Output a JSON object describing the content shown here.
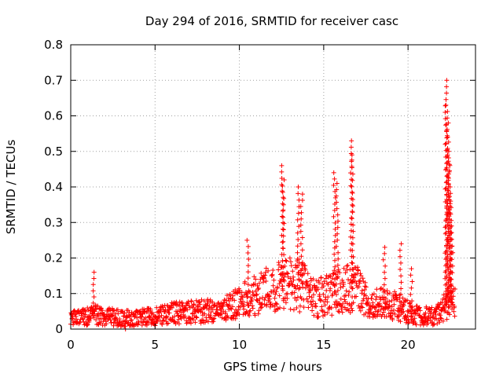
{
  "chart_data": {
    "type": "scatter",
    "title": "Day 294 of 2016, SRMTID for receiver casc",
    "xlabel": "GPS time / hours",
    "ylabel": "SRMTID / TECUs",
    "xlim": [
      0,
      24
    ],
    "ylim": [
      0,
      0.8
    ],
    "x_ticks": [
      0,
      5,
      10,
      15,
      20
    ],
    "y_ticks": [
      0,
      0.1,
      0.2,
      0.3,
      0.4,
      0.5,
      0.6,
      0.7,
      0.8
    ],
    "x_tick_labels": [
      "0",
      "5",
      "10",
      "15",
      "20"
    ],
    "y_tick_labels": [
      "0",
      "0.1",
      "0.2",
      "0.3",
      "0.4",
      "0.5",
      "0.6",
      "0.7",
      "0.8"
    ],
    "grid": true,
    "marker": "plus",
    "series": [
      {
        "name": "SRMTID",
        "color": "#ff0000",
        "baseline": [
          [
            0.0,
            0.035
          ],
          [
            1.0,
            0.035
          ],
          [
            1.5,
            0.04
          ],
          [
            3.0,
            0.03
          ],
          [
            5.0,
            0.035
          ],
          [
            6.0,
            0.045
          ],
          [
            8.0,
            0.05
          ],
          [
            9.5,
            0.06
          ],
          [
            10.5,
            0.09
          ],
          [
            11.5,
            0.11
          ],
          [
            12.5,
            0.12
          ],
          [
            13.2,
            0.13
          ],
          [
            14.0,
            0.11
          ],
          [
            14.5,
            0.085
          ],
          [
            15.5,
            0.1
          ],
          [
            16.2,
            0.12
          ],
          [
            17.0,
            0.11
          ],
          [
            18.0,
            0.075
          ],
          [
            19.0,
            0.07
          ],
          [
            19.8,
            0.055
          ],
          [
            20.3,
            0.04
          ],
          [
            21.5,
            0.035
          ],
          [
            22.0,
            0.05
          ],
          [
            22.5,
            0.09
          ],
          [
            22.8,
            0.07
          ]
        ],
        "spikes": [
          {
            "x": 1.35,
            "y": 0.16
          },
          {
            "x": 3.25,
            "y": 0.0
          },
          {
            "x": 10.5,
            "y": 0.25
          },
          {
            "x": 12.55,
            "y": 0.46
          },
          {
            "x": 12.6,
            "y": 0.42
          },
          {
            "x": 13.5,
            "y": 0.4
          },
          {
            "x": 13.7,
            "y": 0.38
          },
          {
            "x": 15.65,
            "y": 0.44
          },
          {
            "x": 15.8,
            "y": 0.41
          },
          {
            "x": 16.65,
            "y": 0.53
          },
          {
            "x": 16.7,
            "y": 0.49
          },
          {
            "x": 18.6,
            "y": 0.23
          },
          {
            "x": 19.55,
            "y": 0.24
          },
          {
            "x": 20.2,
            "y": 0.17
          },
          {
            "x": 22.25,
            "y": 0.7
          },
          {
            "x": 22.3,
            "y": 0.63
          },
          {
            "x": 22.35,
            "y": 0.58
          },
          {
            "x": 22.4,
            "y": 0.5
          },
          {
            "x": 22.45,
            "y": 0.46
          },
          {
            "x": 22.5,
            "y": 0.4
          },
          {
            "x": 22.55,
            "y": 0.36
          },
          {
            "x": 22.6,
            "y": 0.29
          }
        ]
      }
    ]
  }
}
